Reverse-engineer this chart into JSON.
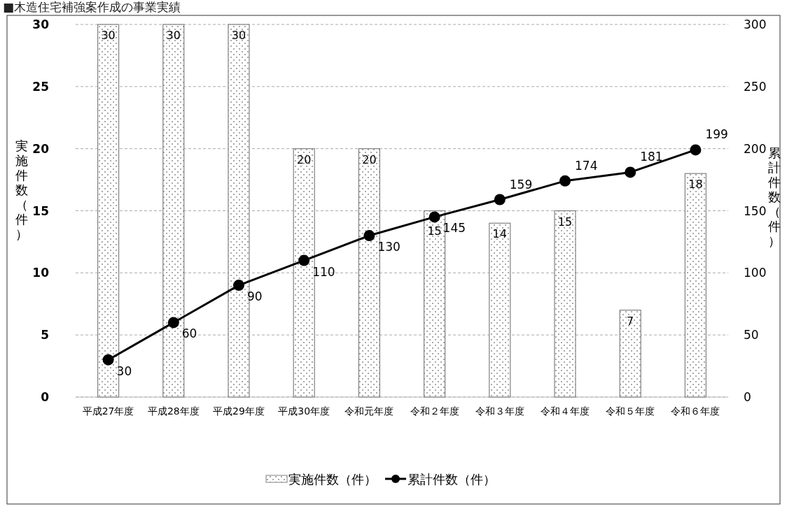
{
  "chart_data": {
    "type": "bar",
    "title": "■木造住宅補強案作成の事業実績",
    "categories": [
      "平成27年度",
      "平成28年度",
      "平成29年度",
      "平成30年度",
      "令和元年度",
      "令和２年度",
      "令和３年度",
      "令和４年度",
      "令和５年度",
      "令和６年度"
    ],
    "series": [
      {
        "name": "実施件数（件）",
        "color": "#808080",
        "values": [
          30,
          30,
          30,
          20,
          20,
          15,
          14,
          15,
          7,
          18
        ]
      },
      {
        "name": "累計件数（件）",
        "type": "line",
        "axis": "y2",
        "color": "#000000",
        "values": [
          30,
          60,
          90,
          110,
          130,
          145,
          159,
          174,
          181,
          199
        ]
      }
    ],
    "ylabel": "実施件数（件）",
    "y2label": "累計件数（件）",
    "ylim": [
      0,
      30
    ],
    "yticks": [
      0,
      5,
      10,
      15,
      20,
      25,
      30
    ],
    "y2lim": [
      0,
      300
    ],
    "y2ticks": [
      0,
      50,
      100,
      150,
      200,
      250,
      300
    ],
    "grid": "y",
    "legend": "bottom",
    "marker": "circle",
    "line_style": "solid",
    "data_labels": true
  }
}
